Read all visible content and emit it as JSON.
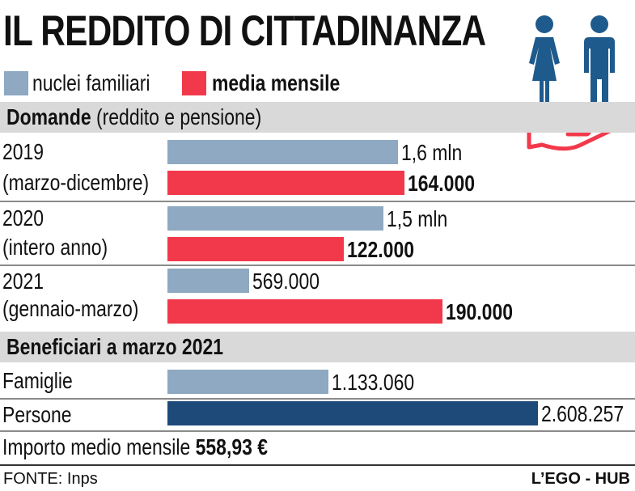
{
  "title": "IL REDDITO DI CITTADINANZA",
  "legend": {
    "nuclei_label": "nuclei familiari",
    "media_label": "media mensile",
    "nuclei_color": "#8ea9c1",
    "media_color": "#f2394b"
  },
  "section_domande": {
    "bold": "Domande",
    "rest": "(reddito e pensione)"
  },
  "section_beneficiari": "Beneficiari a marzo 2021",
  "importo": {
    "label": "Importo medio mensile",
    "value": "558,93 €"
  },
  "footer": {
    "source": "FONTE: Inps",
    "credit": "L’EGO - HUB"
  },
  "icons": [
    "woman-icon",
    "man-icon",
    "open-hand-icon"
  ],
  "chart_data": {
    "type": "bar",
    "orientation": "horizontal",
    "title": "Domande (reddito e pensione)",
    "groups": [
      {
        "year": "2019",
        "period": "(marzo-dicembre)",
        "nuclei": 1600000,
        "nuclei_label": "1,6 mln",
        "media": 164000,
        "media_label": "164.000"
      },
      {
        "year": "2020",
        "period": "(intero anno)",
        "nuclei": 1500000,
        "nuclei_label": "1,5 mln",
        "media": 122000,
        "media_label": "122.000"
      },
      {
        "year": "2021",
        "period": "(gennaio-marzo)",
        "nuclei": 569000,
        "nuclei_label": "569.000",
        "media": 190000,
        "media_label": "190.000"
      }
    ],
    "beneficiari": [
      {
        "label": "Famiglie",
        "value": 1133060,
        "value_label": "1.133.060",
        "color": "#8ea9c1"
      },
      {
        "label": "Persone",
        "value": 2608257,
        "value_label": "2.608.257",
        "color": "#1e4a7a"
      }
    ]
  }
}
